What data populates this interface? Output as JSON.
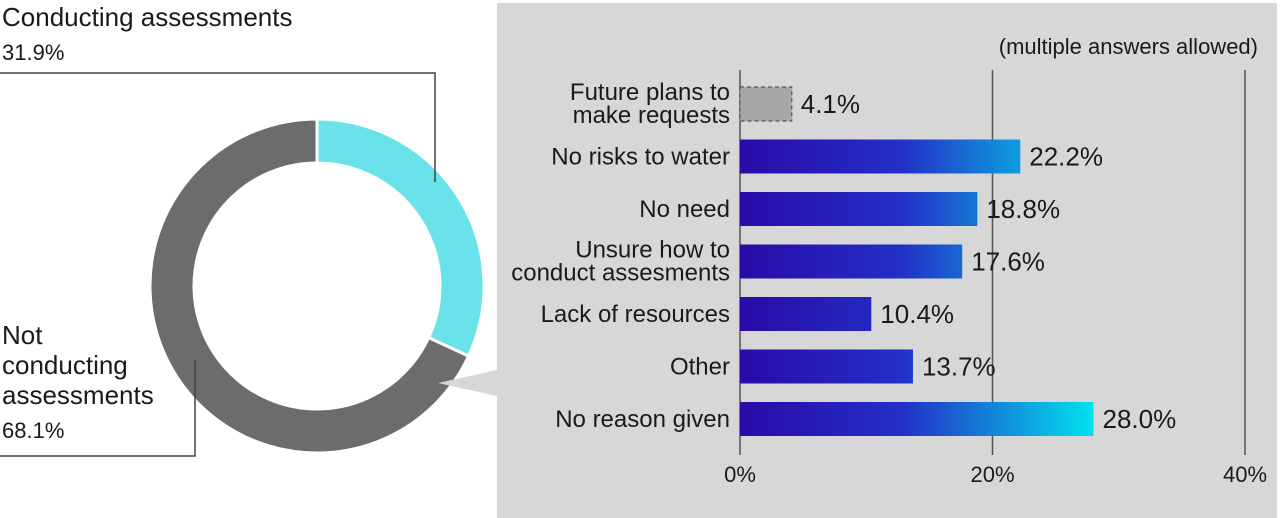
{
  "donut": {
    "segments": [
      {
        "label": "Conducting assessments",
        "value_label": "31.9%",
        "value": 31.9,
        "color": "#69e2ea"
      },
      {
        "label_lines": [
          "Not",
          "conducting",
          "assessments"
        ],
        "value_label": "68.1%",
        "value": 68.1,
        "color": "#6b6c6e"
      }
    ]
  },
  "note": "(multiple answers allowed)",
  "chart_data": {
    "type": "bar",
    "orientation": "horizontal",
    "categories": [
      "Future plans to make requests",
      "No risks to water",
      "No need",
      "Unsure how to conduct assesments",
      "Lack of resources",
      "Other",
      "No reason given"
    ],
    "category_lines": [
      [
        "Future plans to",
        "make requests"
      ],
      [
        "No risks to water"
      ],
      [
        "No need"
      ],
      [
        "Unsure how to",
        "conduct assesments"
      ],
      [
        "Lack of resources"
      ],
      [
        "Other"
      ],
      [
        "No reason given"
      ]
    ],
    "values": [
      4.1,
      22.2,
      18.8,
      17.6,
      10.4,
      13.7,
      28.0
    ],
    "value_labels": [
      "4.1%",
      "22.2%",
      "18.8%",
      "17.6%",
      "10.4%",
      "13.7%",
      "28.0%"
    ],
    "xlim": [
      0,
      40
    ],
    "xticks": [
      "0%",
      "20%",
      "40%"
    ],
    "grid": true,
    "bar_colors": {
      "gradient_start": "#2a0aa8",
      "gradient_end": "#00e8ee",
      "plans": "#a7a7a7"
    }
  }
}
